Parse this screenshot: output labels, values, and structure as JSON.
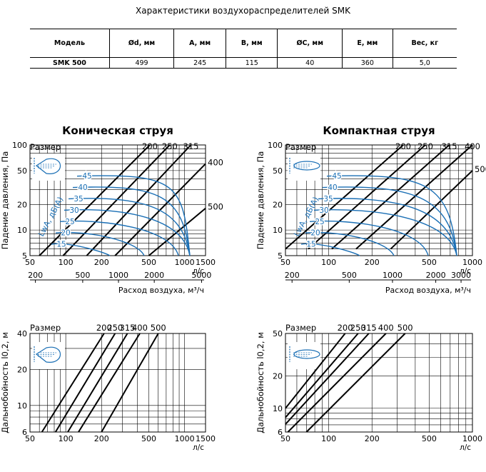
{
  "page_title": "Характеристики воздухораспределителей SMK",
  "spec_table": {
    "headers": [
      "Модель",
      "Ød, мм",
      "A, мм",
      "B, мм",
      "ØC, мм",
      "E, мм",
      "Вес, кг"
    ],
    "rows": [
      [
        "SMK 500",
        "499",
        "245",
        "115",
        "40",
        "360",
        "5,0"
      ]
    ]
  },
  "colors": {
    "curve": "#1a6fb5",
    "grid": "#000000",
    "line": "#000000"
  },
  "icons": [
    "diffuser-conical-jet-icon",
    "diffuser-compact-jet-icon"
  ],
  "chart_data": [
    {
      "type": "line",
      "title": "Коническая струя",
      "xlabel": "л/с",
      "xlabel2": "Расход воздуха, м³/ч",
      "ylabel": "Падение давления, Па",
      "size_label": "Размер",
      "x_scale": "log",
      "y_scale": "log",
      "xlim": [
        50,
        1500
      ],
      "ylim": [
        5,
        100
      ],
      "x_ticks": [
        "50",
        "100",
        "200",
        "500",
        "1000",
        "1500"
      ],
      "x2_ticks": [
        "200",
        "500",
        "1000",
        "2000",
        "5000"
      ],
      "y_ticks": [
        "5",
        "10",
        "20",
        "50",
        "100"
      ],
      "series": [
        {
          "name": "200",
          "x": [
            60,
            510
          ],
          "y": [
            5,
            100
          ]
        },
        {
          "name": "250",
          "x": [
            95,
            750
          ],
          "y": [
            5,
            100
          ]
        },
        {
          "name": "315",
          "x": [
            150,
            1130
          ],
          "y": [
            5,
            100
          ]
        },
        {
          "name": "400",
          "x": [
            260,
            1500
          ],
          "y": [
            5,
            60
          ]
        },
        {
          "name": "500",
          "x": [
            500,
            1500
          ],
          "y": [
            5,
            18
          ]
        }
      ],
      "noise_label": "LwA, дБ(A)",
      "noise_levels": [
        "15",
        "20",
        "25",
        "30",
        "35",
        "40",
        "45"
      ]
    },
    {
      "type": "line",
      "title": "Компактная струя",
      "xlabel": "л/с",
      "xlabel2": "Расход воздуха, м³/ч",
      "ylabel": "Падение давления, Па",
      "size_label": "Размер",
      "x_scale": "log",
      "y_scale": "log",
      "xlim": [
        50,
        1000
      ],
      "ylim": [
        5,
        100
      ],
      "x_ticks": [
        "50",
        "100",
        "200",
        "500",
        "1000"
      ],
      "x2_ticks": [
        "200",
        "500",
        "1000",
        "2000",
        "3000"
      ],
      "y_ticks": [
        "5",
        "10",
        "20",
        "50",
        "100"
      ],
      "series": [
        {
          "name": "200",
          "x": [
            50,
            330
          ],
          "y": [
            6,
            100
          ]
        },
        {
          "name": "250",
          "x": [
            72,
            470
          ],
          "y": [
            6,
            100
          ]
        },
        {
          "name": "315",
          "x": [
            105,
            690
          ],
          "y": [
            6,
            100
          ]
        },
        {
          "name": "400",
          "x": [
            155,
            1000
          ],
          "y": [
            6,
            100
          ]
        },
        {
          "name": "500",
          "x": [
            270,
            1000
          ],
          "y": [
            6,
            50
          ]
        }
      ],
      "noise_label": "LwA, дБ(A)",
      "noise_levels": [
        "15",
        "20",
        "25",
        "30",
        "35",
        "40",
        "45"
      ]
    },
    {
      "type": "line",
      "xlabel": "л/с",
      "ylabel": "Дальнобойность l0,2, м",
      "size_label": "Размер",
      "x_scale": "log",
      "y_scale": "log",
      "xlim": [
        50,
        1500
      ],
      "ylim": [
        6,
        40
      ],
      "x_ticks": [
        "50",
        "100",
        "200",
        "500",
        "1000",
        "1500"
      ],
      "y_ticks": [
        "6",
        "10",
        "20",
        "40"
      ],
      "series": [
        {
          "name": "200",
          "x": [
            63,
            210
          ],
          "y": [
            6,
            40
          ]
        },
        {
          "name": "250",
          "x": [
            82,
            260
          ],
          "y": [
            6,
            40
          ]
        },
        {
          "name": "315",
          "x": [
            104,
            330
          ],
          "y": [
            6,
            40
          ]
        },
        {
          "name": "400",
          "x": [
            128,
            420
          ],
          "y": [
            6,
            40
          ]
        },
        {
          "name": "500",
          "x": [
            200,
            600
          ],
          "y": [
            6,
            40
          ]
        }
      ]
    },
    {
      "type": "line",
      "xlabel": "л/с",
      "ylabel": "Дальнобойность l0,2, м",
      "size_label": "Размер",
      "x_scale": "log",
      "y_scale": "log",
      "xlim": [
        50,
        1000
      ],
      "ylim": [
        6,
        50
      ],
      "x_ticks": [
        "50",
        "100",
        "200",
        "500",
        "1000"
      ],
      "y_ticks": [
        "6",
        "10",
        "20",
        "50"
      ],
      "series": [
        {
          "name": "200",
          "x": [
            50,
            130
          ],
          "y": [
            10,
            50
          ]
        },
        {
          "name": "250",
          "x": [
            50,
            160
          ],
          "y": [
            8.2,
            50
          ]
        },
        {
          "name": "315",
          "x": [
            50,
            190
          ],
          "y": [
            7.1,
            50
          ]
        },
        {
          "name": "400",
          "x": [
            52,
            250
          ],
          "y": [
            6,
            50
          ]
        },
        {
          "name": "500",
          "x": [
            70,
            340
          ],
          "y": [
            6,
            50
          ]
        }
      ]
    }
  ]
}
